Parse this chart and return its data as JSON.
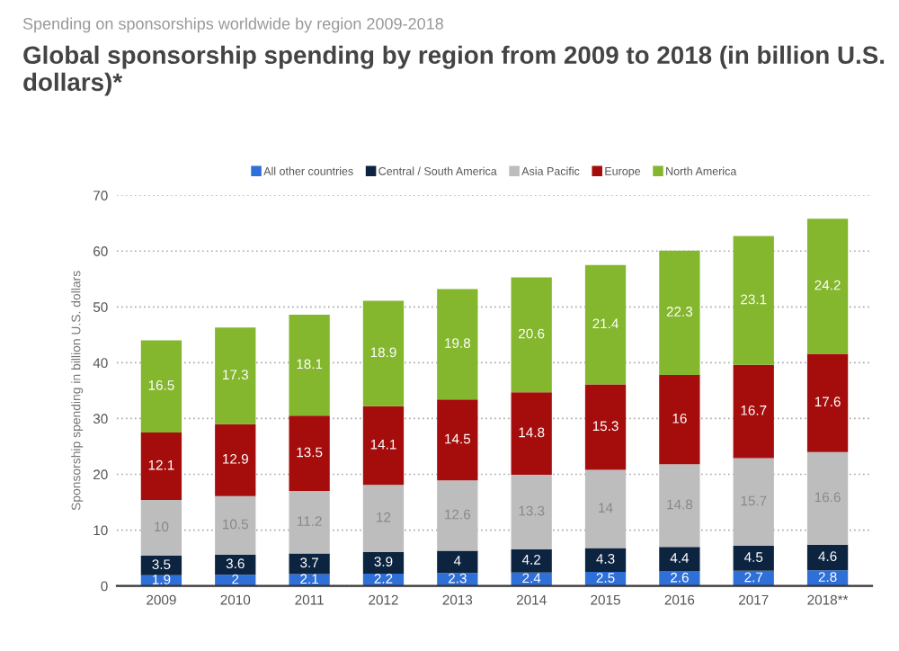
{
  "chart_data": {
    "type": "bar",
    "stacked": true,
    "subtitle": "Spending on sponsorships worldwide by region 2009-2018",
    "title": "Global sponsorship spending by region from 2009 to 2018 (in billion U.S. dollars)*",
    "ylabel": "Sponsorship spending in billion U.S. dollars",
    "categories": [
      "2009",
      "2010",
      "2011",
      "2012",
      "2013",
      "2014",
      "2015",
      "2016",
      "2017",
      "2018**"
    ],
    "series": [
      {
        "name": "All other countries",
        "color": "#2f6fd8",
        "values": [
          1.9,
          2,
          2.1,
          2.2,
          2.3,
          2.4,
          2.5,
          2.6,
          2.7,
          2.8
        ]
      },
      {
        "name": "Central / South America",
        "color": "#0d2440",
        "values": [
          3.5,
          3.6,
          3.7,
          3.9,
          4,
          4.2,
          4.3,
          4.4,
          4.5,
          4.6
        ]
      },
      {
        "name": "Asia Pacific",
        "color": "#bdbdbd",
        "values": [
          10,
          10.5,
          11.2,
          12,
          12.6,
          13.3,
          14,
          14.8,
          15.7,
          16.6
        ]
      },
      {
        "name": "Europe",
        "color": "#a50d0d",
        "values": [
          12.1,
          12.9,
          13.5,
          14.1,
          14.5,
          14.8,
          15.3,
          16,
          16.7,
          17.6
        ]
      },
      {
        "name": "North America",
        "color": "#84b62e",
        "values": [
          16.5,
          17.3,
          18.1,
          18.9,
          19.8,
          20.6,
          21.4,
          22.3,
          23.1,
          24.2
        ]
      }
    ],
    "ylim": [
      0,
      70
    ],
    "yticks": [
      0,
      10,
      20,
      30,
      40,
      50,
      60,
      70
    ],
    "grid": "y",
    "legend": "top",
    "data_labels": true
  }
}
